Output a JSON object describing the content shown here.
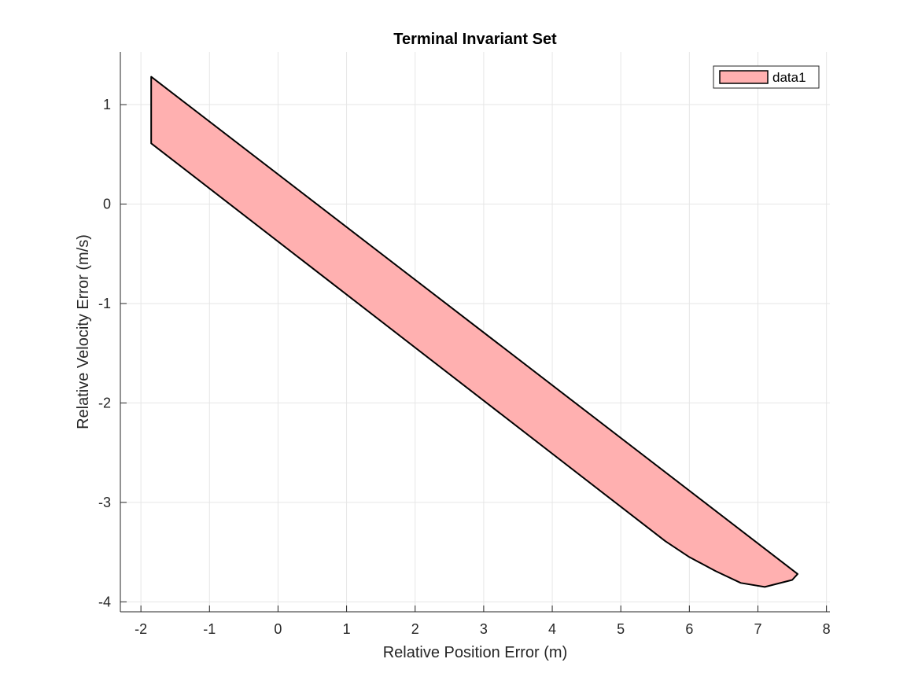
{
  "chart_data": {
    "type": "area",
    "title": "Terminal Invariant Set",
    "xlabel": "Relative Position Error (m)",
    "ylabel": "Relative Velocity Error (m/s)",
    "xlim": [
      -2.3,
      8.05
    ],
    "ylim": [
      -4.1,
      1.53
    ],
    "xticks": [
      -2,
      -1,
      0,
      1,
      2,
      3,
      4,
      5,
      6,
      7,
      8
    ],
    "yticks": [
      -4,
      -3,
      -2,
      -1,
      0,
      1
    ],
    "xtick_labels": [
      "-2",
      "-1",
      "0",
      "1",
      "2",
      "3",
      "4",
      "5",
      "6",
      "7",
      "8"
    ],
    "ytick_labels": [
      "-4",
      "-3",
      "-2",
      "-1",
      "0",
      "1"
    ],
    "grid": true,
    "legend_position": "top-right",
    "series": [
      {
        "name": "data1",
        "color": "#ffb0b0",
        "edge_color": "#000000",
        "polygon": [
          {
            "x": -1.85,
            "y": 1.28
          },
          {
            "x": 7.58,
            "y": -3.72
          },
          {
            "x": 7.5,
            "y": -3.78
          },
          {
            "x": 7.1,
            "y": -3.85
          },
          {
            "x": 6.75,
            "y": -3.81
          },
          {
            "x": 6.38,
            "y": -3.69
          },
          {
            "x": 6.0,
            "y": -3.55
          },
          {
            "x": 5.65,
            "y": -3.39
          },
          {
            "x": -1.85,
            "y": 0.61
          }
        ]
      }
    ]
  }
}
